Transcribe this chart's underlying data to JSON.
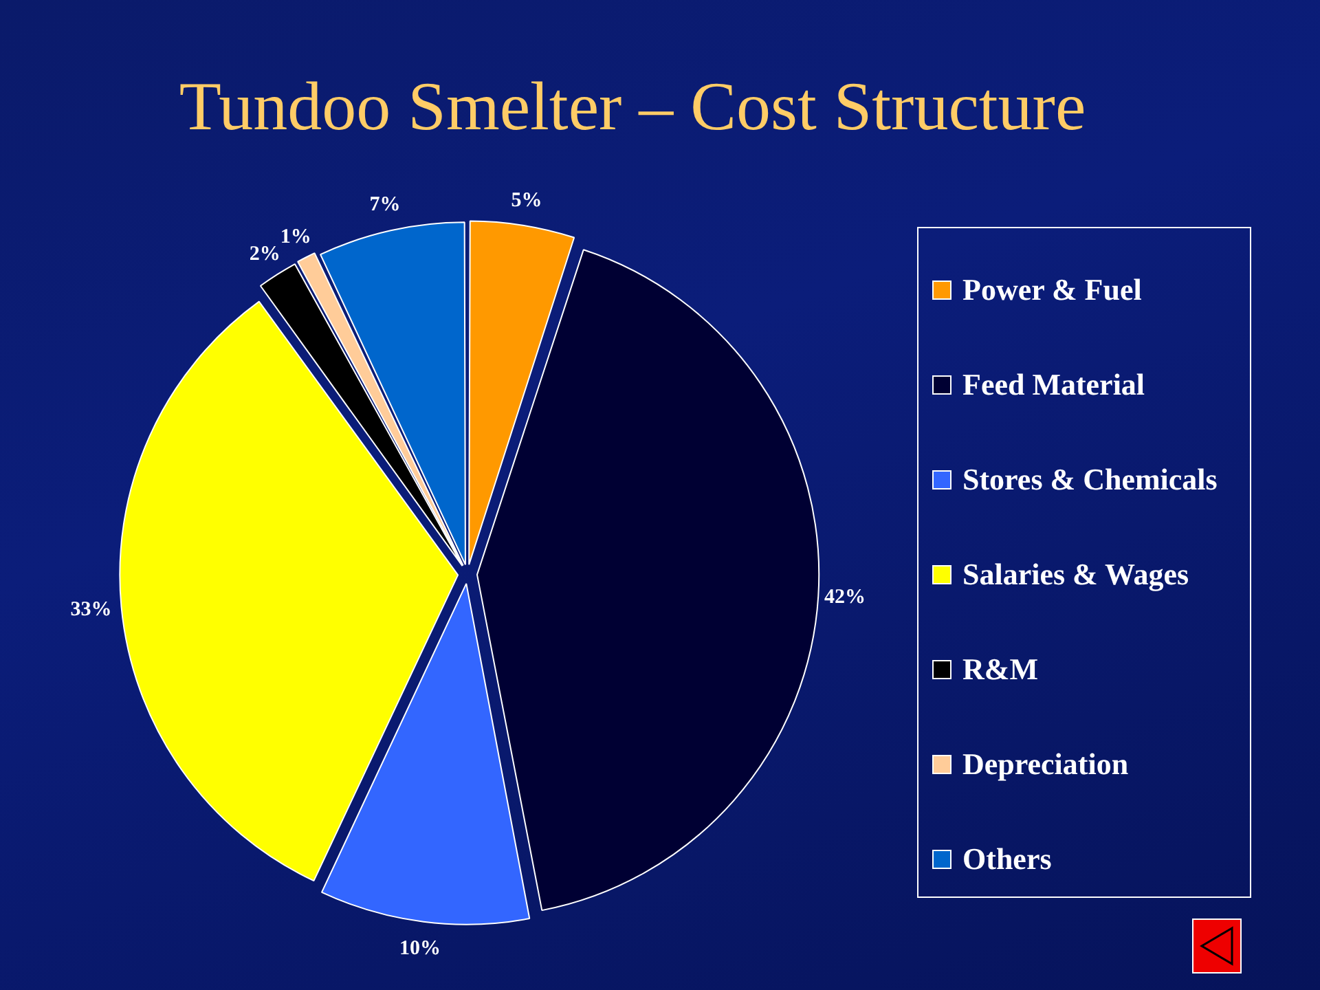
{
  "chart_data": {
    "type": "pie",
    "title": "Tundoo Smelter – Cost Structure",
    "categories": [
      "Power & Fuel",
      "Feed Material",
      "Stores & Chemicals",
      "Salaries & Wages",
      "R&M",
      "Depreciation",
      "Others"
    ],
    "values": [
      5,
      42,
      10,
      33,
      2,
      1,
      7
    ],
    "value_labels": [
      "5%",
      "42%",
      "10%",
      "33%",
      "2%",
      "1%",
      "7%"
    ],
    "colors": [
      "#ff9900",
      "#000033",
      "#3366ff",
      "#ffff00",
      "#000000",
      "#ffcc99",
      "#0066cc"
    ],
    "legend": "right"
  }
}
